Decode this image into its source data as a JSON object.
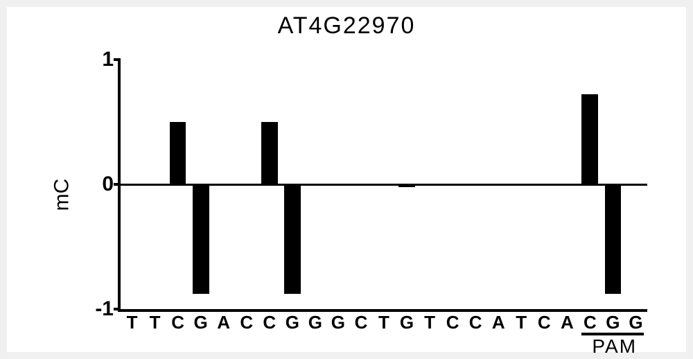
{
  "chart": {
    "type": "bar",
    "title": "AT4G22970",
    "ylabel": "mC",
    "ylim": [
      -1,
      1
    ],
    "yticks": [
      -1,
      0,
      1
    ],
    "ytick_labels": [
      "-1",
      "0",
      "1"
    ],
    "zero_at": 0,
    "background_color": "#ffffff",
    "axis_color": "#000000",
    "bar_color": "#000000",
    "title_fontsize": 34,
    "label_fontsize": 30,
    "tick_fontsize": 30,
    "xtick_fontsize": 26,
    "bar_width": 0.72,
    "categories": [
      "T",
      "T",
      "C",
      "G",
      "A",
      "C",
      "C",
      "G",
      "G",
      "G",
      "C",
      "T",
      "G",
      "T",
      "C",
      "C",
      "A",
      "T",
      "C",
      "A",
      "C",
      "G",
      "G"
    ],
    "values": [
      0,
      0,
      0.5,
      -0.88,
      0,
      0,
      0.5,
      -0.88,
      0,
      0,
      0,
      0,
      -0.02,
      0,
      0,
      0,
      0,
      0,
      0,
      0,
      0.72,
      -0.88,
      0
    ],
    "pam": {
      "label": "PAM",
      "start_index": 20,
      "end_index": 22
    }
  }
}
